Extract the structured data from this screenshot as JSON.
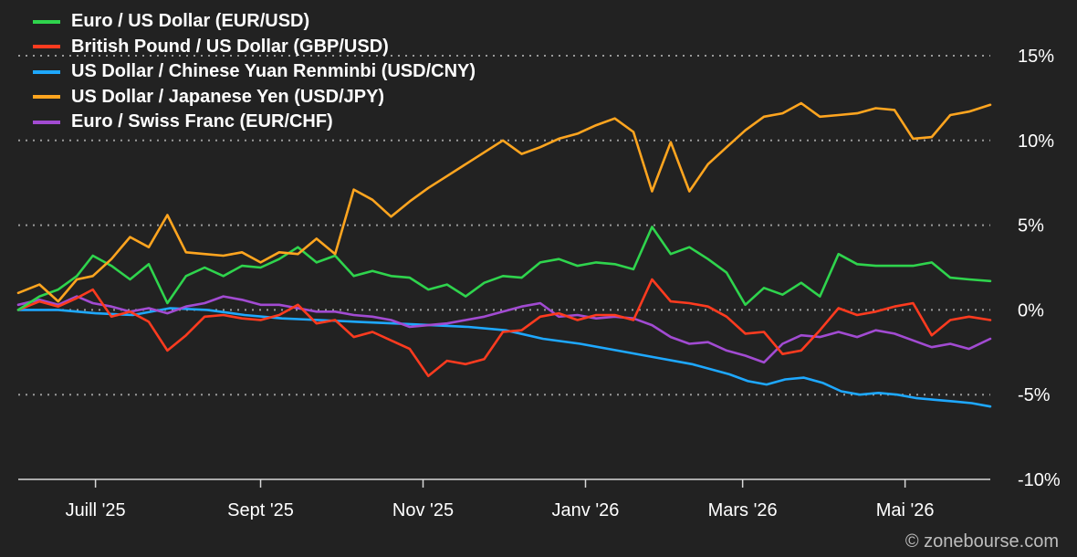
{
  "chart_data": {
    "type": "line",
    "y_axis_unit": "%",
    "ylim": [
      -10,
      15
    ],
    "y_ticks": [
      -10,
      -5,
      0,
      5,
      10,
      15
    ],
    "y_tick_labels": [
      "-10%",
      "-5%",
      "0%",
      "5%",
      "10%",
      "15%"
    ],
    "x_ticks": [
      "2025-07-01",
      "2025-09-01",
      "2025-11-01",
      "2026-01-01",
      "2026-03-01",
      "2026-05-01"
    ],
    "x_tick_labels": [
      "Juill '25",
      "Sept '25",
      "Nov '25",
      "Janv '26",
      "Mars '26",
      "Mai '26"
    ],
    "xlim": [
      "2025-06-02",
      "2026-06-02"
    ],
    "grid": "horizontal-dotted",
    "legend_position": "top-left",
    "series": [
      {
        "name": "Euro / US Dollar (EUR/USD)",
        "color": "#2fd44d",
        "points": [
          [
            "2025-06-02",
            0
          ],
          [
            "2025-06-10",
            0.8
          ],
          [
            "2025-06-17",
            1.2
          ],
          [
            "2025-06-24",
            2
          ],
          [
            "2025-06-30",
            3.2
          ],
          [
            "2025-07-07",
            2.6
          ],
          [
            "2025-07-14",
            1.8
          ],
          [
            "2025-07-21",
            2.7
          ],
          [
            "2025-07-28",
            0.4
          ],
          [
            "2025-08-04",
            2
          ],
          [
            "2025-08-11",
            2.5
          ],
          [
            "2025-08-18",
            2
          ],
          [
            "2025-08-25",
            2.6
          ],
          [
            "2025-09-01",
            2.5
          ],
          [
            "2025-09-08",
            3
          ],
          [
            "2025-09-15",
            3.7
          ],
          [
            "2025-09-22",
            2.8
          ],
          [
            "2025-09-29",
            3.2
          ],
          [
            "2025-10-06",
            2
          ],
          [
            "2025-10-13",
            2.3
          ],
          [
            "2025-10-20",
            2
          ],
          [
            "2025-10-27",
            1.9
          ],
          [
            "2025-11-03",
            1.2
          ],
          [
            "2025-11-10",
            1.5
          ],
          [
            "2025-11-17",
            0.8
          ],
          [
            "2025-11-24",
            1.6
          ],
          [
            "2025-12-01",
            2
          ],
          [
            "2025-12-08",
            1.9
          ],
          [
            "2025-12-15",
            2.8
          ],
          [
            "2025-12-22",
            3
          ],
          [
            "2025-12-29",
            2.6
          ],
          [
            "2026-01-05",
            2.8
          ],
          [
            "2026-01-12",
            2.7
          ],
          [
            "2026-01-19",
            2.4
          ],
          [
            "2026-01-26",
            4.9
          ],
          [
            "2026-02-02",
            3.3
          ],
          [
            "2026-02-09",
            3.7
          ],
          [
            "2026-02-16",
            3
          ],
          [
            "2026-02-23",
            2.2
          ],
          [
            "2026-03-02",
            0.3
          ],
          [
            "2026-03-09",
            1.3
          ],
          [
            "2026-03-16",
            0.9
          ],
          [
            "2026-03-23",
            1.6
          ],
          [
            "2026-03-30",
            0.8
          ],
          [
            "2026-04-06",
            3.3
          ],
          [
            "2026-04-13",
            2.7
          ],
          [
            "2026-04-20",
            2.6
          ],
          [
            "2026-04-27",
            2.6
          ],
          [
            "2026-05-04",
            2.6
          ],
          [
            "2026-05-11",
            2.8
          ],
          [
            "2026-05-18",
            1.9
          ],
          [
            "2026-05-25",
            1.8
          ],
          [
            "2026-06-02",
            1.7
          ]
        ]
      },
      {
        "name": "British Pound / US Dollar (GBP/USD)",
        "color": "#ff3b1f",
        "points": [
          [
            "2025-06-02",
            0
          ],
          [
            "2025-06-10",
            0.5
          ],
          [
            "2025-06-17",
            0.2
          ],
          [
            "2025-06-24",
            0.7
          ],
          [
            "2025-06-30",
            1.2
          ],
          [
            "2025-07-07",
            -0.4
          ],
          [
            "2025-07-14",
            -0.1
          ],
          [
            "2025-07-21",
            -0.7
          ],
          [
            "2025-07-28",
            -2.4
          ],
          [
            "2025-08-04",
            -1.5
          ],
          [
            "2025-08-11",
            -0.4
          ],
          [
            "2025-08-18",
            -0.3
          ],
          [
            "2025-08-25",
            -0.5
          ],
          [
            "2025-09-01",
            -0.6
          ],
          [
            "2025-09-08",
            -0.3
          ],
          [
            "2025-09-15",
            0.3
          ],
          [
            "2025-09-22",
            -0.8
          ],
          [
            "2025-09-29",
            -0.6
          ],
          [
            "2025-10-06",
            -1.6
          ],
          [
            "2025-10-13",
            -1.3
          ],
          [
            "2025-10-20",
            -1.8
          ],
          [
            "2025-10-27",
            -2.3
          ],
          [
            "2025-11-03",
            -3.9
          ],
          [
            "2025-11-10",
            -3
          ],
          [
            "2025-11-17",
            -3.2
          ],
          [
            "2025-11-24",
            -2.9
          ],
          [
            "2025-12-01",
            -1.3
          ],
          [
            "2025-12-08",
            -1.2
          ],
          [
            "2025-12-15",
            -0.4
          ],
          [
            "2025-12-22",
            -0.2
          ],
          [
            "2025-12-29",
            -0.6
          ],
          [
            "2026-01-05",
            -0.3
          ],
          [
            "2026-01-12",
            -0.3
          ],
          [
            "2026-01-19",
            -0.6
          ],
          [
            "2026-01-26",
            1.8
          ],
          [
            "2026-02-02",
            0.5
          ],
          [
            "2026-02-09",
            0.4
          ],
          [
            "2026-02-16",
            0.2
          ],
          [
            "2026-02-23",
            -0.4
          ],
          [
            "2026-03-02",
            -1.4
          ],
          [
            "2026-03-09",
            -1.3
          ],
          [
            "2026-03-16",
            -2.6
          ],
          [
            "2026-03-23",
            -2.4
          ],
          [
            "2026-03-30",
            -1.2
          ],
          [
            "2026-04-06",
            0.1
          ],
          [
            "2026-04-13",
            -0.3
          ],
          [
            "2026-04-20",
            -0.1
          ],
          [
            "2026-04-27",
            0.2
          ],
          [
            "2026-05-04",
            0.4
          ],
          [
            "2026-05-11",
            -1.5
          ],
          [
            "2026-05-18",
            -0.6
          ],
          [
            "2026-05-25",
            -0.4
          ],
          [
            "2026-06-02",
            -0.6
          ]
        ]
      },
      {
        "name": "US Dollar / Chinese Yuan Renminbi (USD/CNY)",
        "color": "#1ea8ff",
        "points": [
          [
            "2025-06-02",
            0
          ],
          [
            "2025-06-17",
            0
          ],
          [
            "2025-07-01",
            -0.2
          ],
          [
            "2025-07-15",
            -0.3
          ],
          [
            "2025-07-29",
            0.1
          ],
          [
            "2025-08-12",
            0
          ],
          [
            "2025-08-26",
            -0.3
          ],
          [
            "2025-09-09",
            -0.5
          ],
          [
            "2025-09-23",
            -0.6
          ],
          [
            "2025-10-07",
            -0.7
          ],
          [
            "2025-10-21",
            -0.8
          ],
          [
            "2025-11-04",
            -0.9
          ],
          [
            "2025-11-18",
            -1
          ],
          [
            "2025-12-02",
            -1.2
          ],
          [
            "2025-12-16",
            -1.7
          ],
          [
            "2025-12-30",
            -2
          ],
          [
            "2026-01-13",
            -2.4
          ],
          [
            "2026-01-27",
            -2.8
          ],
          [
            "2026-02-10",
            -3.2
          ],
          [
            "2026-02-24",
            -3.8
          ],
          [
            "2026-03-03",
            -4.2
          ],
          [
            "2026-03-10",
            -4.4
          ],
          [
            "2026-03-17",
            -4.1
          ],
          [
            "2026-03-24",
            -4
          ],
          [
            "2026-03-31",
            -4.3
          ],
          [
            "2026-04-07",
            -4.8
          ],
          [
            "2026-04-14",
            -5
          ],
          [
            "2026-04-21",
            -4.9
          ],
          [
            "2026-04-28",
            -5
          ],
          [
            "2026-05-05",
            -5.2
          ],
          [
            "2026-05-12",
            -5.3
          ],
          [
            "2026-05-19",
            -5.4
          ],
          [
            "2026-05-26",
            -5.5
          ],
          [
            "2026-06-02",
            -5.7
          ]
        ]
      },
      {
        "name": "US Dollar / Japanese Yen (USD/JPY)",
        "color": "#ffa51f",
        "points": [
          [
            "2025-06-02",
            1
          ],
          [
            "2025-06-10",
            1.5
          ],
          [
            "2025-06-17",
            0.5
          ],
          [
            "2025-06-24",
            1.8
          ],
          [
            "2025-06-30",
            2
          ],
          [
            "2025-07-07",
            3
          ],
          [
            "2025-07-14",
            4.3
          ],
          [
            "2025-07-21",
            3.7
          ],
          [
            "2025-07-28",
            5.6
          ],
          [
            "2025-08-04",
            3.4
          ],
          [
            "2025-08-11",
            3.3
          ],
          [
            "2025-08-18",
            3.2
          ],
          [
            "2025-08-25",
            3.4
          ],
          [
            "2025-09-01",
            2.8
          ],
          [
            "2025-09-08",
            3.4
          ],
          [
            "2025-09-15",
            3.3
          ],
          [
            "2025-09-22",
            4.2
          ],
          [
            "2025-09-29",
            3.3
          ],
          [
            "2025-10-06",
            7.1
          ],
          [
            "2025-10-13",
            6.5
          ],
          [
            "2025-10-20",
            5.5
          ],
          [
            "2025-10-27",
            6.4
          ],
          [
            "2025-11-03",
            7.2
          ],
          [
            "2025-11-10",
            7.9
          ],
          [
            "2025-11-17",
            8.6
          ],
          [
            "2025-11-24",
            9.3
          ],
          [
            "2025-12-01",
            10
          ],
          [
            "2025-12-08",
            9.2
          ],
          [
            "2025-12-15",
            9.6
          ],
          [
            "2025-12-22",
            10.1
          ],
          [
            "2025-12-29",
            10.4
          ],
          [
            "2026-01-05",
            10.9
          ],
          [
            "2026-01-12",
            11.3
          ],
          [
            "2026-01-19",
            10.5
          ],
          [
            "2026-01-26",
            7
          ],
          [
            "2026-02-02",
            9.9
          ],
          [
            "2026-02-09",
            7
          ],
          [
            "2026-02-16",
            8.6
          ],
          [
            "2026-02-23",
            9.6
          ],
          [
            "2026-03-02",
            10.6
          ],
          [
            "2026-03-09",
            11.4
          ],
          [
            "2026-03-16",
            11.6
          ],
          [
            "2026-03-23",
            12.2
          ],
          [
            "2026-03-30",
            11.4
          ],
          [
            "2026-04-06",
            11.5
          ],
          [
            "2026-04-13",
            11.6
          ],
          [
            "2026-04-20",
            11.9
          ],
          [
            "2026-04-27",
            11.8
          ],
          [
            "2026-05-04",
            10.1
          ],
          [
            "2026-05-11",
            10.2
          ],
          [
            "2026-05-18",
            11.5
          ],
          [
            "2026-05-25",
            11.7
          ],
          [
            "2026-06-02",
            12.1
          ]
        ]
      },
      {
        "name": "Euro / Swiss Franc (EUR/CHF)",
        "color": "#a24bd2",
        "points": [
          [
            "2025-06-02",
            0.3
          ],
          [
            "2025-06-10",
            0.6
          ],
          [
            "2025-06-17",
            0.3
          ],
          [
            "2025-06-24",
            0.8
          ],
          [
            "2025-06-30",
            0.4
          ],
          [
            "2025-07-07",
            0.2
          ],
          [
            "2025-07-14",
            -0.1
          ],
          [
            "2025-07-21",
            0.1
          ],
          [
            "2025-07-28",
            -0.2
          ],
          [
            "2025-08-04",
            0.2
          ],
          [
            "2025-08-11",
            0.4
          ],
          [
            "2025-08-18",
            0.8
          ],
          [
            "2025-08-25",
            0.6
          ],
          [
            "2025-09-01",
            0.3
          ],
          [
            "2025-09-08",
            0.3
          ],
          [
            "2025-09-15",
            0.1
          ],
          [
            "2025-09-22",
            -0.1
          ],
          [
            "2025-09-29",
            -0.1
          ],
          [
            "2025-10-06",
            -0.3
          ],
          [
            "2025-10-13",
            -0.4
          ],
          [
            "2025-10-20",
            -0.6
          ],
          [
            "2025-10-27",
            -1
          ],
          [
            "2025-11-03",
            -0.9
          ],
          [
            "2025-11-10",
            -0.8
          ],
          [
            "2025-11-17",
            -0.6
          ],
          [
            "2025-11-24",
            -0.4
          ],
          [
            "2025-12-01",
            -0.1
          ],
          [
            "2025-12-08",
            0.2
          ],
          [
            "2025-12-15",
            0.4
          ],
          [
            "2025-12-22",
            -0.4
          ],
          [
            "2025-12-29",
            -0.3
          ],
          [
            "2026-01-05",
            -0.5
          ],
          [
            "2026-01-12",
            -0.4
          ],
          [
            "2026-01-19",
            -0.5
          ],
          [
            "2026-01-26",
            -0.9
          ],
          [
            "2026-02-02",
            -1.6
          ],
          [
            "2026-02-09",
            -2
          ],
          [
            "2026-02-16",
            -1.9
          ],
          [
            "2026-02-23",
            -2.4
          ],
          [
            "2026-03-02",
            -2.7
          ],
          [
            "2026-03-09",
            -3.1
          ],
          [
            "2026-03-16",
            -2
          ],
          [
            "2026-03-23",
            -1.5
          ],
          [
            "2026-03-30",
            -1.6
          ],
          [
            "2026-04-06",
            -1.3
          ],
          [
            "2026-04-13",
            -1.6
          ],
          [
            "2026-04-20",
            -1.2
          ],
          [
            "2026-04-27",
            -1.4
          ],
          [
            "2026-05-04",
            -1.8
          ],
          [
            "2026-05-11",
            -2.2
          ],
          [
            "2026-05-18",
            -2
          ],
          [
            "2026-05-25",
            -2.3
          ],
          [
            "2026-06-02",
            -1.7
          ]
        ]
      }
    ]
  },
  "copyright": "© zonebourse.com"
}
